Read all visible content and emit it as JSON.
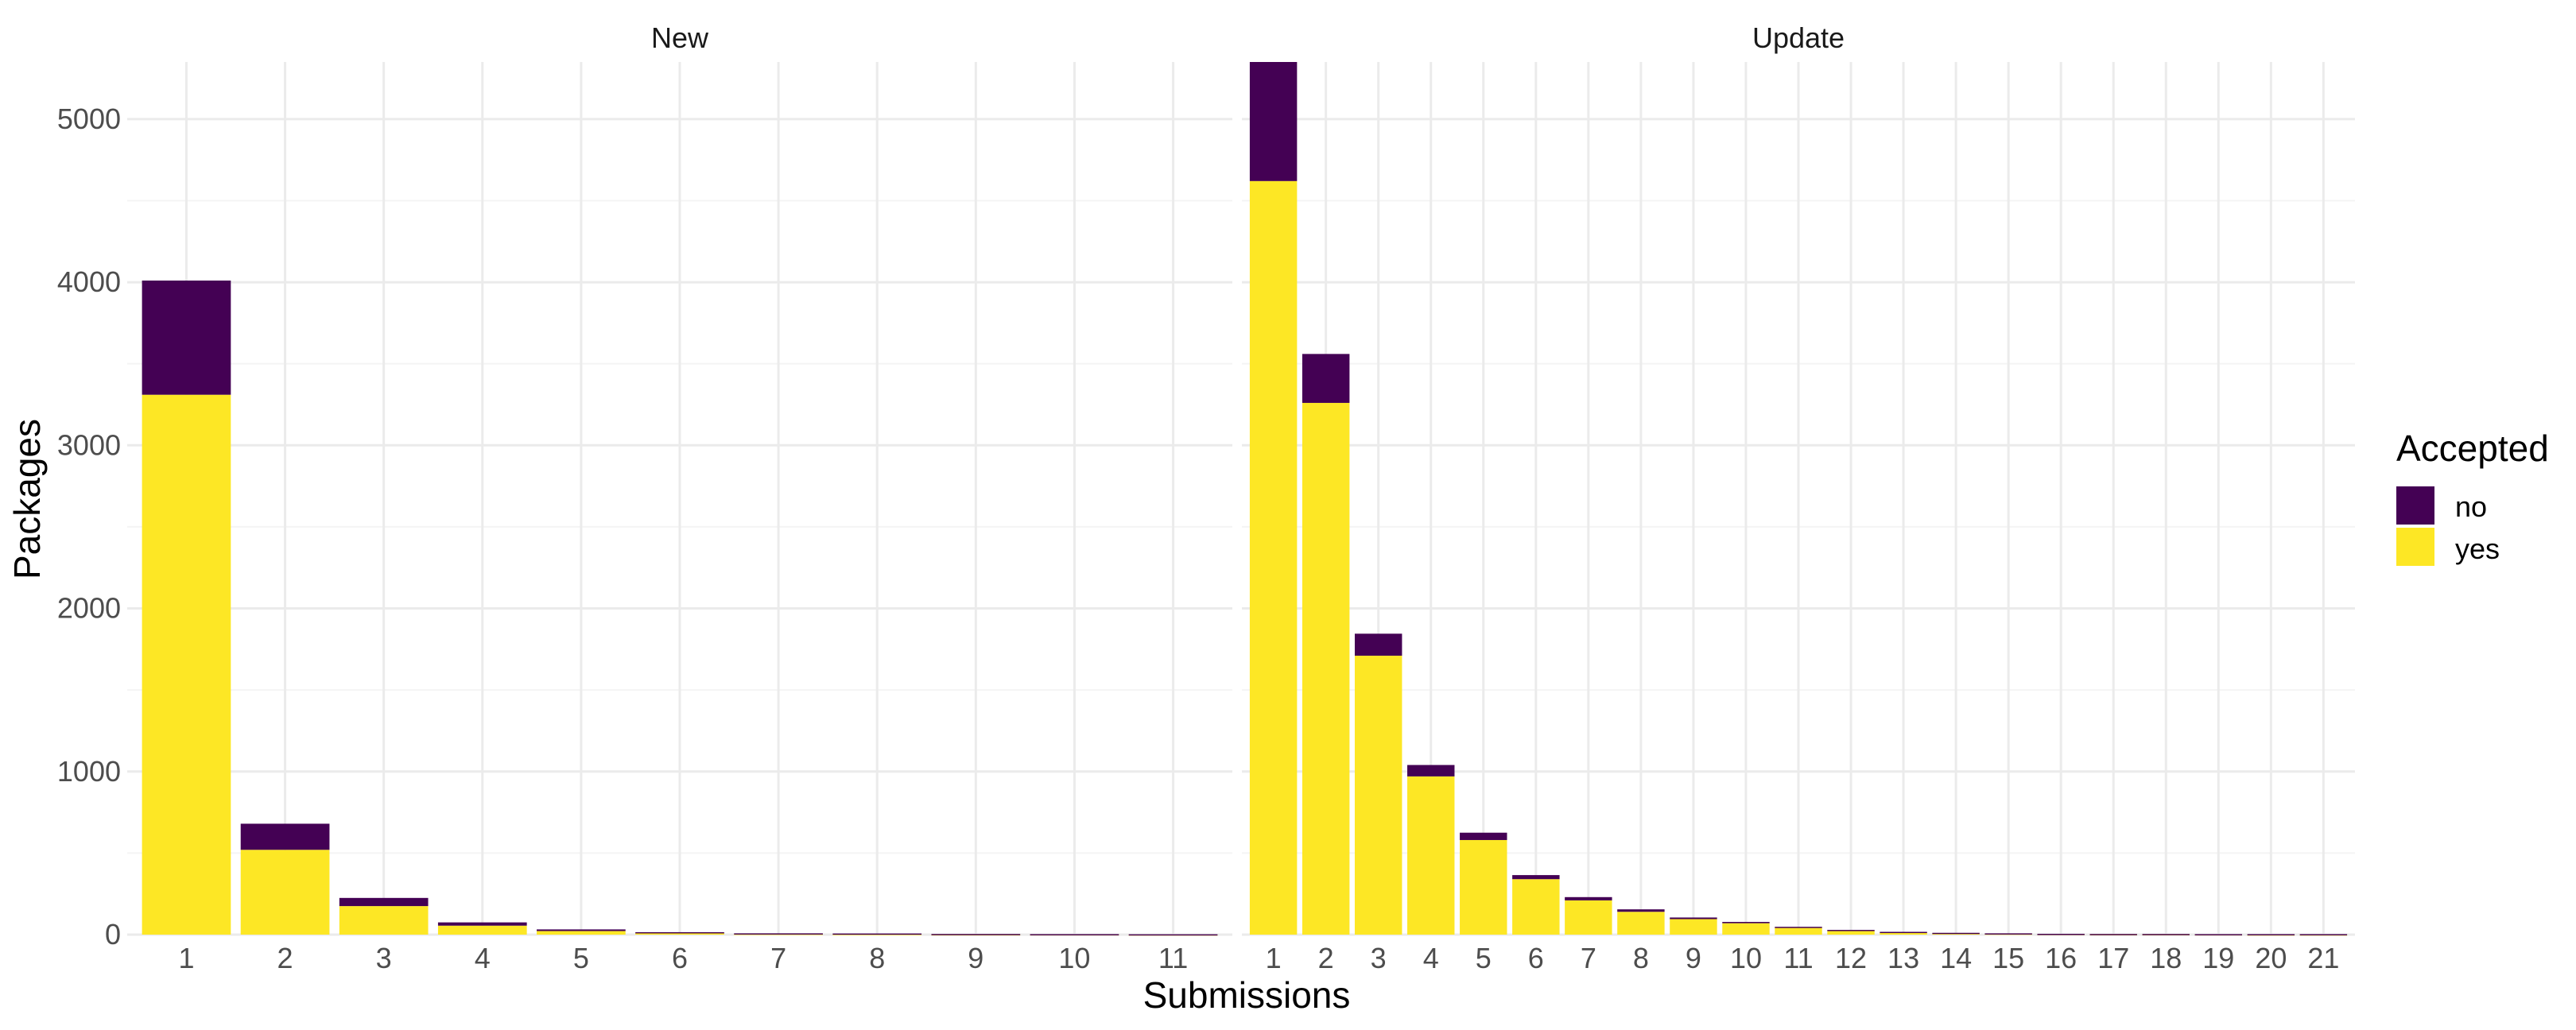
{
  "chart_data": {
    "type": "bar",
    "stacked": true,
    "xlabel": "Submissions",
    "ylabel": "Packages",
    "ylim": [
      0,
      5350
    ],
    "yticks": [
      0,
      1000,
      2000,
      3000,
      4000,
      5000
    ],
    "grid": true,
    "legend": {
      "title": "Accepted",
      "position": "right",
      "entries": [
        {
          "name": "no",
          "color": "#440154"
        },
        {
          "name": "yes",
          "color": "#FDE725"
        }
      ]
    },
    "panels": [
      {
        "title": "New",
        "categories": [
          "1",
          "2",
          "3",
          "4",
          "5",
          "6",
          "7",
          "8",
          "9",
          "10",
          "11"
        ],
        "series": [
          {
            "name": "yes",
            "values": [
              3310,
              520,
              175,
              55,
              22,
              10,
              5,
              4,
              2,
              2,
              1
            ]
          },
          {
            "name": "no",
            "values": [
              700,
              160,
              50,
              20,
              10,
              5,
              3,
              3,
              2,
              1,
              1
            ]
          }
        ]
      },
      {
        "title": "Update",
        "categories": [
          "1",
          "2",
          "3",
          "4",
          "5",
          "6",
          "7",
          "8",
          "9",
          "10",
          "11",
          "12",
          "13",
          "14",
          "15",
          "16",
          "17",
          "18",
          "19",
          "20",
          "21"
        ],
        "series": [
          {
            "name": "yes",
            "values": [
              4620,
              3260,
              1710,
              970,
              580,
              340,
              210,
              140,
              95,
              70,
              42,
              25,
              14,
              9,
              6,
              4,
              3,
              3,
              2,
              1,
              1
            ]
          },
          {
            "name": "no",
            "values": [
              730,
              300,
              135,
              70,
              45,
              25,
              20,
              15,
              10,
              8,
              6,
              4,
              3,
              2,
              2,
              1,
              1,
              1,
              1,
              2,
              2
            ]
          }
        ]
      }
    ]
  }
}
